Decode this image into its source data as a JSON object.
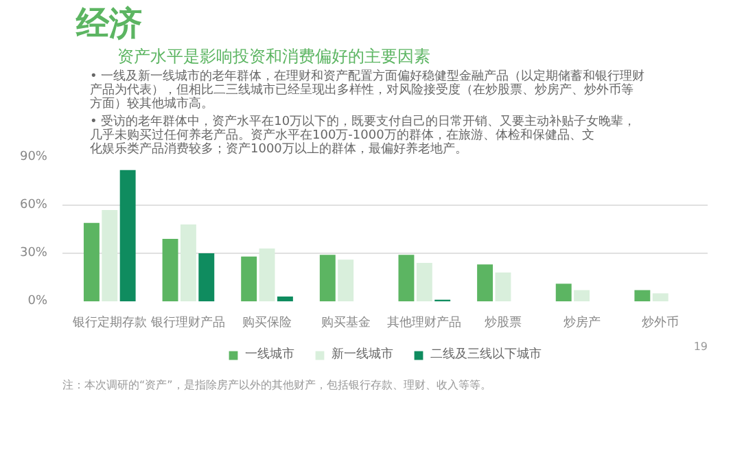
{
  "chart_data": {
    "type": "bar",
    "title": "经济",
    "subtitle": "资产水平是影响投资和消费偏好的主要因素",
    "annotations": [
      "• 一线及新一线城市的老年群体，在理财和资产配置方面偏好稳健型金融产品（以定期储蓄和银行理财产品为代表），但相比二三线城市已经呈现出多样性，对风险接受度（在炒股票、炒房产、炒外币等方面）较其他城市高。",
      "• 受访的老年群体中，资产水平在10万以下的，既要支付自己的日常开销、又要主动补贴子女晚辈，几乎未购买过任何养老产品。资产水平在100万-1000万的群体，在旅游、体检和保健品、文化娱乐类产品消费较多；资产1000万以上的群体，最偏好养老地产。",
      "注：本次调研的“资产”，是指除房产以外的其他财产，包括银行存款、理财、收入等等。",
      "19"
    ],
    "categories": [
      "银行定期存款",
      "银行理财产品",
      "购买保险",
      "购买基金",
      "其他理财产品",
      "炒股票",
      "炒房产",
      "炒外币"
    ],
    "series": [
      {
        "name": "一线城市",
        "color": "#5cb562",
        "values": [
          49,
          39,
          28,
          29,
          29,
          23,
          11,
          7
        ]
      },
      {
        "name": "新一线城市",
        "color": "#d9efdc",
        "values": [
          57,
          48,
          33,
          26,
          24,
          18,
          7,
          5
        ]
      },
      {
        "name": "二线及三线以下城市",
        "color": "#0f8c5f",
        "values": [
          82,
          30,
          3,
          null,
          1,
          null,
          null,
          null
        ]
      }
    ],
    "ylim": [
      0,
      90
    ],
    "yticks": [
      {
        "value": 0,
        "label": "0%"
      },
      {
        "value": 30,
        "label": "30%"
      },
      {
        "value": 60,
        "label": "60%"
      },
      {
        "value": 90,
        "label": "90%"
      }
    ],
    "grid": "y",
    "legend": "bottom"
  }
}
